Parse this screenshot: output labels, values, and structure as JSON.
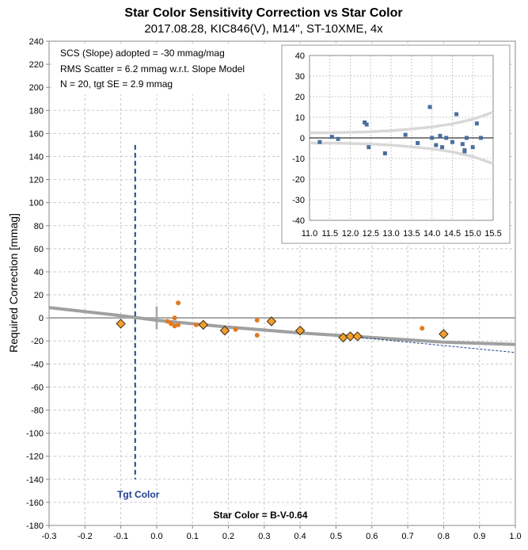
{
  "chart_data": {
    "type": "scatter",
    "title": "Star Color Sensitivity Correction vs Star Color",
    "subtitle": "2017.08.28, KIC846(V), M14\", ST-10XME, 4x",
    "xlabel": "Star Color = B-V-0.64",
    "ylabel": "Required Correction [mmag]",
    "xlim": [
      -0.3,
      1.0
    ],
    "ylim": [
      -180,
      240
    ],
    "x_ticks": [
      "-0.3",
      "-0.2",
      "-0.1",
      "0.0",
      "0.1",
      "0.2",
      "0.3",
      "0.4",
      "0.5",
      "0.6",
      "0.7",
      "0.8",
      "0.9",
      "1.0"
    ],
    "y_ticks": [
      "240",
      "220",
      "200",
      "180",
      "160",
      "140",
      "120",
      "100",
      "80",
      "60",
      "40",
      "20",
      "0",
      "-20",
      "-40",
      "-60",
      "-80",
      "-100",
      "-120",
      "-140",
      "-160",
      "-180"
    ],
    "grid": true,
    "annotations": {
      "line1": "SCS (Slope) adopted  =  -30 mmag/mag",
      "line2": "RMS Scatter = 6.2 mmag w.r.t. Slope Model",
      "line3": "N = 20,  tgt SE = 2.9 mmag",
      "target_label": "Tgt Color"
    },
    "target_color_x": -0.06,
    "series": [
      {
        "marker": "circle",
        "color": "#e07b20",
        "points": [
          [
            0.03,
            -3
          ],
          [
            0.04,
            -5
          ],
          [
            0.05,
            0
          ],
          [
            0.05,
            -7
          ],
          [
            0.06,
            -6
          ],
          [
            0.06,
            13
          ],
          [
            0.11,
            -6
          ],
          [
            0.22,
            -10
          ],
          [
            0.28,
            -2
          ],
          [
            0.28,
            -15
          ],
          [
            0.74,
            -9
          ]
        ]
      },
      {
        "marker": "diamond",
        "color": "#f0a030",
        "points": [
          [
            -0.1,
            -5
          ],
          [
            0.13,
            -6
          ],
          [
            0.19,
            -11
          ],
          [
            0.32,
            -3
          ],
          [
            0.4,
            -11
          ],
          [
            0.52,
            -17
          ],
          [
            0.54,
            -16
          ],
          [
            0.56,
            -16
          ],
          [
            0.8,
            -14
          ]
        ]
      }
    ],
    "model_curve": {
      "x": [
        -0.3,
        -0.1,
        0.0,
        0.2,
        0.4,
        0.6,
        0.8,
        1.0
      ],
      "y": [
        9,
        2,
        -2,
        -8,
        -13,
        -17,
        -21,
        -23
      ]
    },
    "slope_line": {
      "x": [
        0.55,
        1.0
      ],
      "y": [
        -16.5,
        -30
      ]
    },
    "inset": {
      "xlim": [
        11.0,
        15.5
      ],
      "ylim": [
        -40,
        40
      ],
      "x_ticks": [
        "11.0",
        "11.5",
        "12.0",
        "12.5",
        "13.0",
        "13.5",
        "14.0",
        "14.5",
        "15.0",
        "15.5"
      ],
      "y_ticks": [
        "40",
        "30",
        "20",
        "10",
        "0",
        "-10",
        "-20",
        "-30",
        "-40"
      ],
      "points": [
        [
          11.25,
          -2
        ],
        [
          11.55,
          0.5
        ],
        [
          11.7,
          -0.5
        ],
        [
          12.35,
          7.5
        ],
        [
          12.4,
          6.5
        ],
        [
          12.45,
          -4.5
        ],
        [
          12.85,
          -7.5
        ],
        [
          13.35,
          1.5
        ],
        [
          13.65,
          -2.5
        ],
        [
          13.95,
          15
        ],
        [
          14.0,
          0
        ],
        [
          14.1,
          -3.5
        ],
        [
          14.2,
          1
        ],
        [
          14.25,
          -4.5
        ],
        [
          14.35,
          0
        ],
        [
          14.5,
          -2
        ],
        [
          14.6,
          11.5
        ],
        [
          14.75,
          -3
        ],
        [
          14.8,
          -6
        ],
        [
          14.8,
          -6.5
        ],
        [
          14.85,
          0
        ],
        [
          15.0,
          -4.5
        ],
        [
          15.1,
          7
        ],
        [
          15.2,
          0
        ]
      ],
      "envelope_x": [
        11.0,
        11.5,
        12.0,
        12.5,
        13.0,
        13.5,
        14.0,
        14.5,
        15.0,
        15.5
      ],
      "envelope_y": [
        2.5,
        2.5,
        2.7,
        3.0,
        3.5,
        4.3,
        5.3,
        6.8,
        9.0,
        12.5
      ]
    }
  }
}
